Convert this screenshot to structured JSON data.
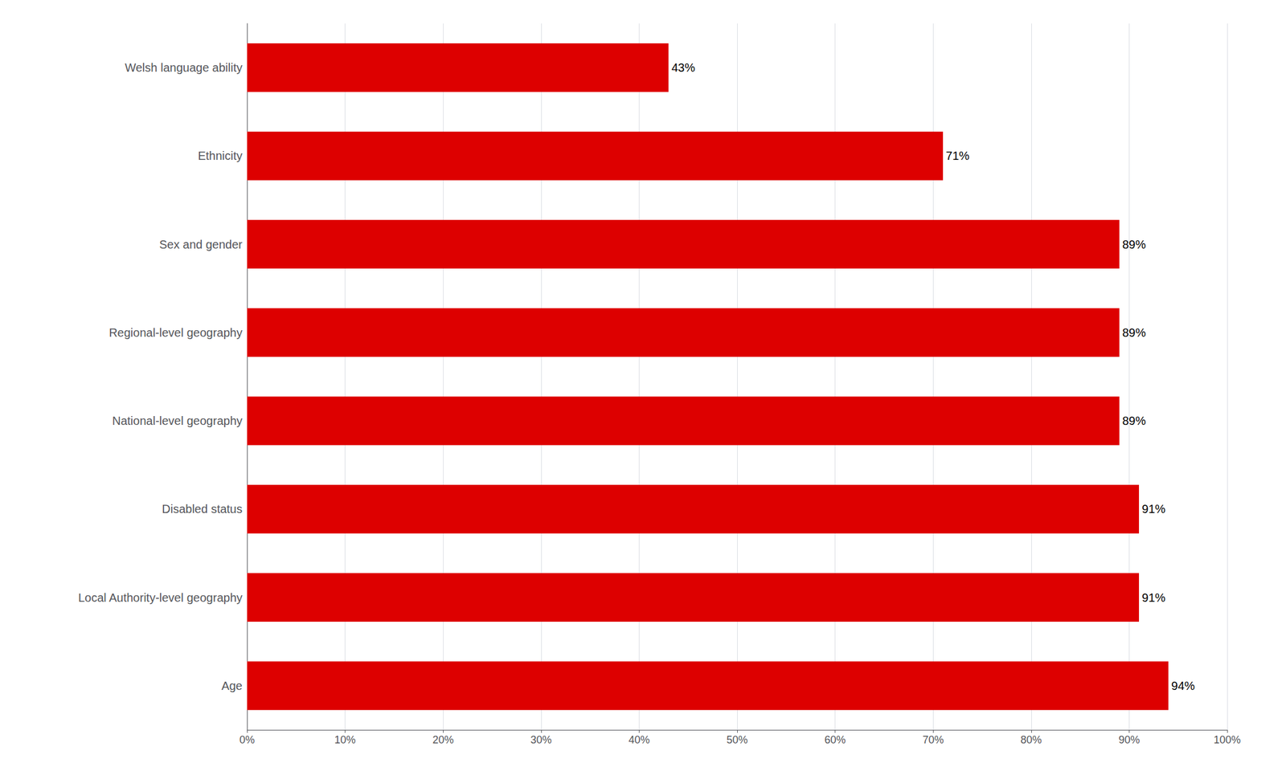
{
  "chart_data": {
    "type": "bar",
    "orientation": "horizontal",
    "categories": [
      "Welsh language ability",
      "Ethnicity",
      "Sex and gender",
      "Regional-level geography",
      "National-level geography",
      "Disabled status",
      "Local Authority-level geography",
      "Age"
    ],
    "values": [
      43,
      71,
      89,
      89,
      89,
      91,
      91,
      94
    ],
    "value_labels": [
      "43%",
      "71%",
      "89%",
      "89%",
      "89%",
      "91%",
      "91%",
      "94%"
    ],
    "data_labels": true,
    "color": "#dd0000",
    "xlim": [
      0,
      100
    ],
    "xticks": [
      {
        "value": 0,
        "label": "0%"
      },
      {
        "value": 10,
        "label": "10%"
      },
      {
        "value": 20,
        "label": "20%"
      },
      {
        "value": 30,
        "label": "30%"
      },
      {
        "value": 40,
        "label": "40%"
      },
      {
        "value": 50,
        "label": "50%"
      },
      {
        "value": 60,
        "label": "60%"
      },
      {
        "value": 70,
        "label": "70%"
      },
      {
        "value": 80,
        "label": "80%"
      },
      {
        "value": 90,
        "label": "90%"
      },
      {
        "value": 100,
        "label": "100%"
      }
    ],
    "grid": true
  }
}
